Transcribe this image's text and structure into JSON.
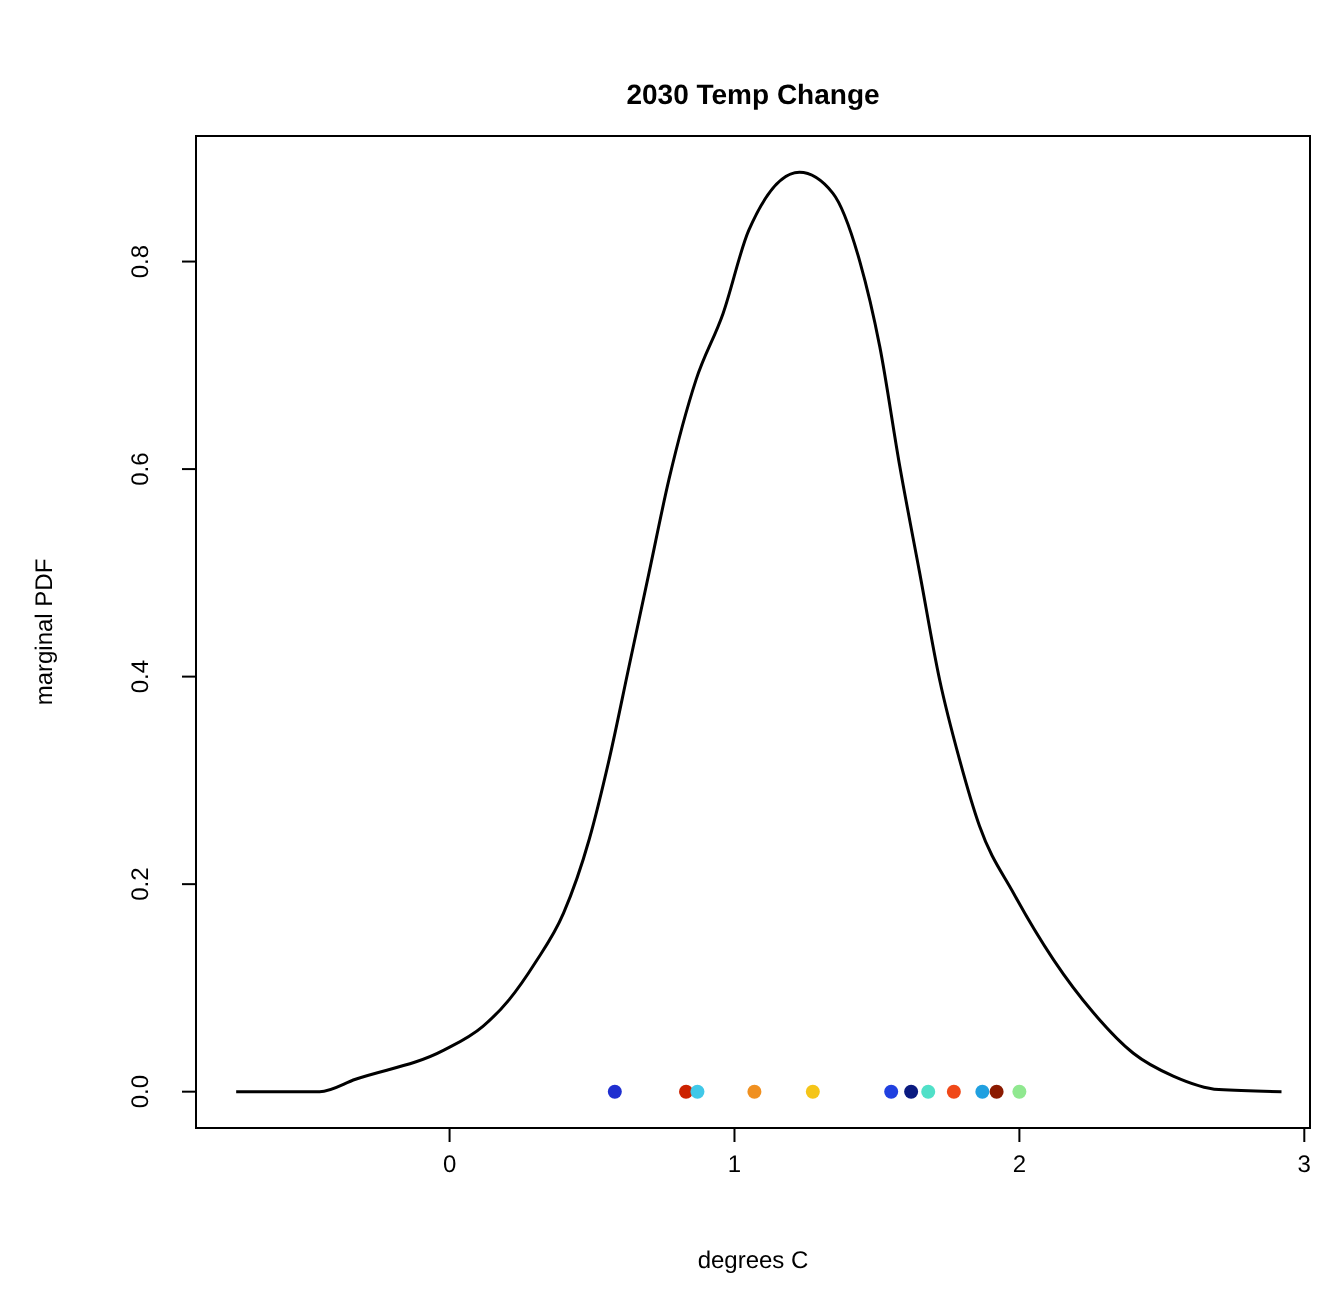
{
  "chart_data": {
    "type": "line",
    "title": "2030 Temp Change",
    "xlabel": "degrees C",
    "ylabel": "marginal PDF",
    "xlim": [
      -0.89,
      3.02
    ],
    "ylim": [
      -0.035,
      0.921
    ],
    "xticks": [
      0,
      1,
      2,
      3
    ],
    "yticks": [
      {
        "value": 0,
        "label": "0.0"
      },
      0.2,
      0.4,
      0.6,
      0.8
    ],
    "series": [
      {
        "type": "line",
        "color": "#000000",
        "line_style": "solid",
        "marker": "none",
        "x": [
          -0.749,
          -0.456,
          -0.33,
          -0.02,
          0.117,
          0.21,
          0.3,
          0.4,
          0.49,
          0.56,
          0.63,
          0.7,
          0.77,
          0.865,
          0.96,
          1.05,
          1.228,
          1.345,
          1.44,
          1.51,
          1.58,
          1.65,
          1.72,
          1.79,
          1.86,
          1.98,
          2.12,
          2.26,
          2.4,
          2.54,
          2.7,
          2.92
        ],
        "values": [
          0,
          0,
          0.012,
          0.04,
          0.063,
          0.089,
          0.124,
          0.172,
          0.243,
          0.32,
          0.41,
          0.5,
          0.59,
          0.686,
          0.75,
          0.83,
          0.886,
          0.866,
          0.8,
          0.718,
          0.603,
          0.5,
          0.397,
          0.32,
          0.256,
          0.191,
          0.127,
          0.076,
          0.037,
          0.015,
          0.002,
          0
        ]
      },
      {
        "type": "scatter",
        "marker": "circle",
        "x": [
          0.58,
          0.83,
          0.87,
          1.07,
          1.275,
          1.55,
          1.62,
          1.68,
          1.77,
          1.87,
          1.92,
          2.0
        ],
        "values": [
          0,
          0,
          0,
          0,
          0,
          0,
          0,
          0,
          0,
          0,
          0,
          0
        ],
        "colors": [
          "#1f2fd0",
          "#cc2200",
          "#40c8e8",
          "#f09020",
          "#f5c518",
          "#2040e0",
          "#0a1a80",
          "#50e0c8",
          "#f04818",
          "#20a0e0",
          "#8b1a00",
          "#90e890"
        ]
      }
    ]
  }
}
